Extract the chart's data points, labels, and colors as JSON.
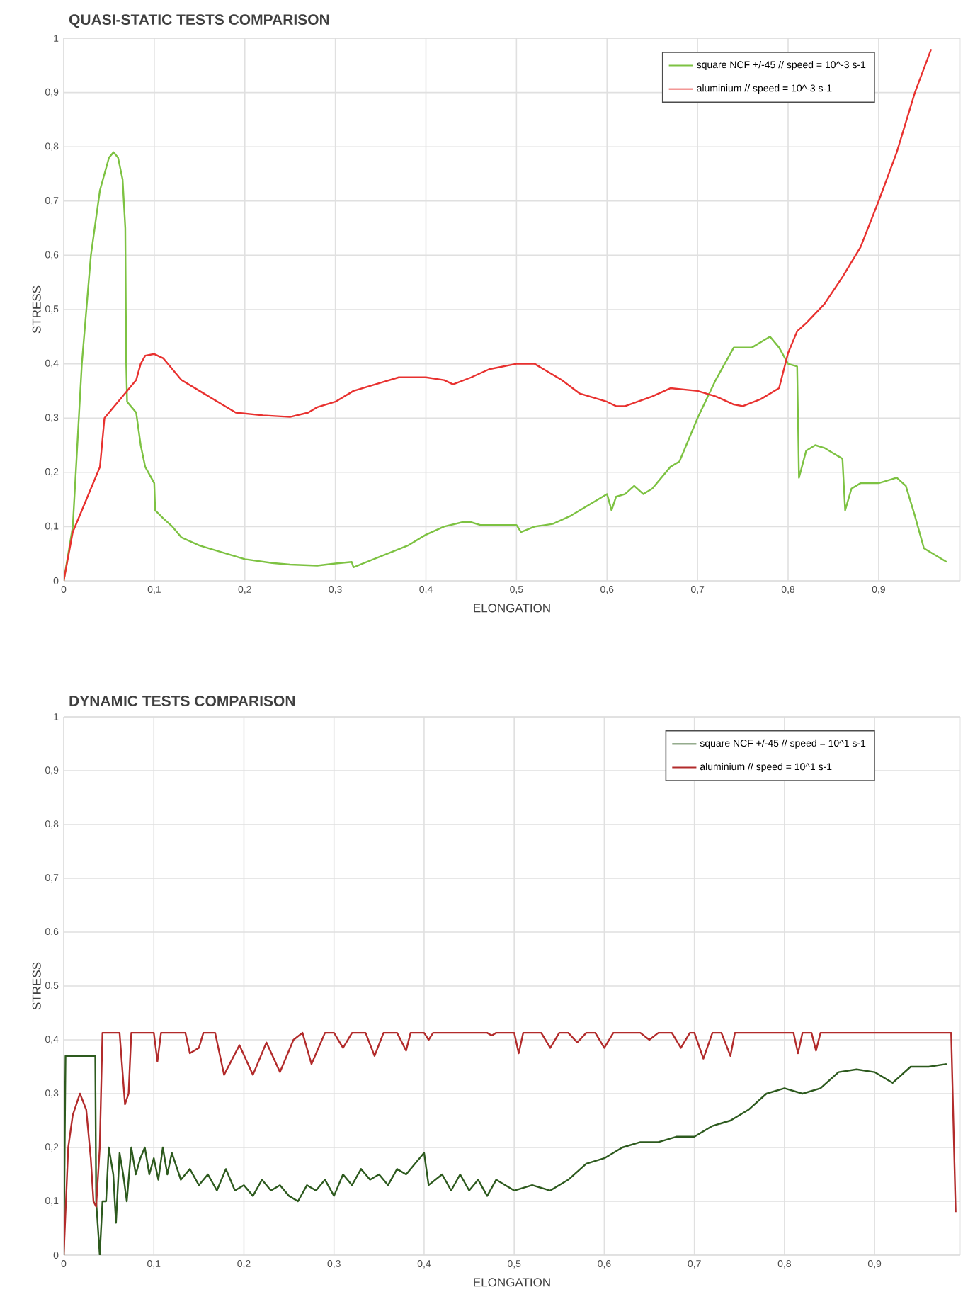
{
  "chart_data": [
    {
      "type": "line",
      "title": "QUASI-STATIC TESTS COMPARISON",
      "xlabel": "ELONGATION",
      "ylabel": "STRESS",
      "grid": true,
      "legend": "top right",
      "marker": "none",
      "line_style": "solid",
      "xlim": [
        0,
        0.99
      ],
      "ylim": [
        0,
        1
      ],
      "xticks": [
        0,
        {
          "value": 0.1,
          "label": "0,1"
        },
        {
          "value": 0.2,
          "label": "0,2"
        },
        {
          "value": 0.3,
          "label": "0,3"
        },
        {
          "value": 0.4,
          "label": "0,4"
        },
        {
          "value": 0.5,
          "label": "0,5"
        },
        {
          "value": 0.6,
          "label": "0,6"
        },
        {
          "value": 0.7,
          "label": "0,7"
        },
        {
          "value": 0.8,
          "label": "0,8"
        },
        {
          "value": 0.9,
          "label": "0,9"
        }
      ],
      "yticks": [
        0,
        {
          "value": 0.1,
          "label": "0,1"
        },
        {
          "value": 0.2,
          "label": "0,2"
        },
        {
          "value": 0.3,
          "label": "0,3"
        },
        {
          "value": 0.4,
          "label": "0,4"
        },
        {
          "value": 0.5,
          "label": "0,5"
        },
        {
          "value": 0.6,
          "label": "0,6"
        },
        {
          "value": 0.7,
          "label": "0,7"
        },
        {
          "value": 0.8,
          "label": "0,8"
        },
        {
          "value": 0.9,
          "label": "0,9"
        },
        1
      ],
      "series": [
        {
          "name": "square NCF +/-45 // speed = 10^-3 s-1",
          "color": "#7dc242",
          "x": [
            0,
            0.01,
            0.02,
            0.03,
            0.04,
            0.05,
            0.055,
            0.06,
            0.065,
            0.068,
            0.069,
            0.07,
            0.075,
            0.08,
            0.085,
            0.09,
            0.1,
            0.101,
            0.11,
            0.12,
            0.13,
            0.15,
            0.2,
            0.23,
            0.25,
            0.28,
            0.3,
            0.318,
            0.32,
            0.35,
            0.38,
            0.4,
            0.42,
            0.44,
            0.45,
            0.46,
            0.5,
            0.505,
            0.52,
            0.54,
            0.56,
            0.6,
            0.605,
            0.61,
            0.62,
            0.63,
            0.64,
            0.65,
            0.66,
            0.67,
            0.68,
            0.7,
            0.72,
            0.74,
            0.76,
            0.78,
            0.79,
            0.8,
            0.81,
            0.812,
            0.82,
            0.83,
            0.84,
            0.85,
            0.86,
            0.863,
            0.87,
            0.88,
            0.9,
            0.92,
            0.93,
            0.94,
            0.95,
            0.96,
            0.975
          ],
          "values": [
            0,
            0.1,
            0.4,
            0.6,
            0.72,
            0.78,
            0.79,
            0.78,
            0.74,
            0.65,
            0.4,
            0.33,
            0.32,
            0.31,
            0.25,
            0.21,
            0.18,
            0.13,
            0.115,
            0.1,
            0.08,
            0.065,
            0.04,
            0.033,
            0.03,
            0.028,
            0.032,
            0.035,
            0.025,
            0.045,
            0.065,
            0.085,
            0.1,
            0.108,
            0.108,
            0.103,
            0.103,
            0.09,
            0.1,
            0.105,
            0.12,
            0.16,
            0.13,
            0.155,
            0.16,
            0.175,
            0.16,
            0.17,
            0.19,
            0.21,
            0.22,
            0.3,
            0.37,
            0.43,
            0.43,
            0.45,
            0.43,
            0.4,
            0.395,
            0.19,
            0.24,
            0.25,
            0.245,
            0.235,
            0.225,
            0.13,
            0.17,
            0.18,
            0.18,
            0.19,
            0.175,
            0.12,
            0.06,
            0.05,
            0.035
          ]
        },
        {
          "name": "aluminium // speed = 10^-3 s-1",
          "color": "#e8312f",
          "x": [
            0,
            0.01,
            0.02,
            0.03,
            0.04,
            0.045,
            0.05,
            0.06,
            0.07,
            0.08,
            0.085,
            0.09,
            0.1,
            0.11,
            0.12,
            0.13,
            0.15,
            0.17,
            0.19,
            0.22,
            0.25,
            0.27,
            0.28,
            0.3,
            0.32,
            0.35,
            0.37,
            0.4,
            0.42,
            0.43,
            0.45,
            0.47,
            0.5,
            0.52,
            0.55,
            0.57,
            0.6,
            0.61,
            0.62,
            0.65,
            0.67,
            0.7,
            0.72,
            0.74,
            0.75,
            0.77,
            0.79,
            0.8,
            0.81,
            0.82,
            0.84,
            0.86,
            0.88,
            0.9,
            0.92,
            0.94,
            0.958
          ],
          "values": [
            0,
            0.09,
            0.13,
            0.17,
            0.21,
            0.3,
            0.31,
            0.33,
            0.35,
            0.37,
            0.4,
            0.415,
            0.418,
            0.41,
            0.39,
            0.37,
            0.35,
            0.33,
            0.31,
            0.305,
            0.302,
            0.31,
            0.32,
            0.33,
            0.35,
            0.365,
            0.375,
            0.375,
            0.37,
            0.362,
            0.375,
            0.39,
            0.4,
            0.4,
            0.37,
            0.345,
            0.33,
            0.322,
            0.322,
            0.34,
            0.355,
            0.35,
            0.34,
            0.325,
            0.322,
            0.335,
            0.355,
            0.42,
            0.46,
            0.475,
            0.51,
            0.56,
            0.615,
            0.7,
            0.79,
            0.9,
            0.98
          ]
        }
      ]
    },
    {
      "type": "line",
      "title": "DYNAMIC TESTS COMPARISON",
      "xlabel": "ELONGATION",
      "ylabel": "STRESS",
      "grid": true,
      "legend": "top right",
      "marker": "none",
      "line_style": "solid",
      "xlim": [
        0,
        0.995
      ],
      "ylim": [
        0,
        1
      ],
      "xticks": [
        0,
        {
          "value": 0.1,
          "label": "0,1"
        },
        {
          "value": 0.2,
          "label": "0,2"
        },
        {
          "value": 0.3,
          "label": "0,3"
        },
        {
          "value": 0.4,
          "label": "0,4"
        },
        {
          "value": 0.5,
          "label": "0,5"
        },
        {
          "value": 0.6,
          "label": "0,6"
        },
        {
          "value": 0.7,
          "label": "0,7"
        },
        {
          "value": 0.8,
          "label": "0,8"
        },
        {
          "value": 0.9,
          "label": "0,9"
        }
      ],
      "yticks": [
        0,
        {
          "value": 0.1,
          "label": "0,1"
        },
        {
          "value": 0.2,
          "label": "0,2"
        },
        {
          "value": 0.3,
          "label": "0,3"
        },
        {
          "value": 0.4,
          "label": "0,4"
        },
        {
          "value": 0.5,
          "label": "0,5"
        },
        {
          "value": 0.6,
          "label": "0,6"
        },
        {
          "value": 0.7,
          "label": "0,7"
        },
        {
          "value": 0.8,
          "label": "0,8"
        },
        {
          "value": 0.9,
          "label": "0,9"
        },
        1
      ],
      "series": [
        {
          "name": "square NCF +/-45 // speed = 10^1 s-1",
          "color": "#2d5a1e",
          "x": [
            0,
            0.002,
            0.035,
            0.036,
            0.04,
            0.043,
            0.047,
            0.05,
            0.055,
            0.058,
            0.062,
            0.066,
            0.07,
            0.075,
            0.08,
            0.085,
            0.09,
            0.095,
            0.1,
            0.105,
            0.11,
            0.115,
            0.12,
            0.13,
            0.14,
            0.15,
            0.16,
            0.17,
            0.18,
            0.19,
            0.2,
            0.21,
            0.22,
            0.23,
            0.24,
            0.25,
            0.26,
            0.27,
            0.28,
            0.29,
            0.3,
            0.31,
            0.32,
            0.33,
            0.34,
            0.35,
            0.36,
            0.37,
            0.38,
            0.39,
            0.4,
            0.405,
            0.42,
            0.43,
            0.44,
            0.45,
            0.46,
            0.47,
            0.48,
            0.5,
            0.52,
            0.54,
            0.56,
            0.58,
            0.6,
            0.62,
            0.64,
            0.66,
            0.68,
            0.7,
            0.72,
            0.74,
            0.76,
            0.78,
            0.8,
            0.82,
            0.84,
            0.86,
            0.88,
            0.9,
            0.92,
            0.94,
            0.96,
            0.98
          ],
          "values": [
            0,
            0.37,
            0.37,
            0.1,
            0.0,
            0.1,
            0.1,
            0.2,
            0.15,
            0.06,
            0.19,
            0.15,
            0.1,
            0.2,
            0.15,
            0.18,
            0.2,
            0.15,
            0.18,
            0.14,
            0.2,
            0.15,
            0.19,
            0.14,
            0.16,
            0.13,
            0.15,
            0.12,
            0.16,
            0.12,
            0.13,
            0.11,
            0.14,
            0.12,
            0.13,
            0.11,
            0.1,
            0.13,
            0.12,
            0.14,
            0.11,
            0.15,
            0.13,
            0.16,
            0.14,
            0.15,
            0.13,
            0.16,
            0.15,
            0.17,
            0.19,
            0.13,
            0.15,
            0.12,
            0.15,
            0.12,
            0.14,
            0.11,
            0.14,
            0.12,
            0.13,
            0.12,
            0.14,
            0.17,
            0.18,
            0.2,
            0.21,
            0.21,
            0.22,
            0.22,
            0.24,
            0.25,
            0.27,
            0.3,
            0.31,
            0.3,
            0.31,
            0.34,
            0.345,
            0.34,
            0.32,
            0.35,
            0.35,
            0.355
          ]
        },
        {
          "name": "aluminium // speed = 10^1 s-1",
          "color": "#b22b2b",
          "x": [
            0,
            0.005,
            0.01,
            0.018,
            0.025,
            0.03,
            0.033,
            0.036,
            0.04,
            0.043,
            0.062,
            0.068,
            0.072,
            0.075,
            0.1,
            0.104,
            0.108,
            0.135,
            0.14,
            0.15,
            0.155,
            0.168,
            0.178,
            0.195,
            0.21,
            0.225,
            0.24,
            0.255,
            0.265,
            0.275,
            0.29,
            0.3,
            0.31,
            0.32,
            0.335,
            0.345,
            0.355,
            0.37,
            0.38,
            0.385,
            0.4,
            0.405,
            0.41,
            0.47,
            0.475,
            0.48,
            0.5,
            0.505,
            0.51,
            0.53,
            0.54,
            0.55,
            0.56,
            0.57,
            0.58,
            0.59,
            0.6,
            0.61,
            0.64,
            0.65,
            0.66,
            0.675,
            0.685,
            0.695,
            0.7,
            0.71,
            0.72,
            0.73,
            0.74,
            0.745,
            0.81,
            0.815,
            0.82,
            0.83,
            0.835,
            0.84,
            0.985,
            0.99
          ],
          "values": [
            0,
            0.2,
            0.26,
            0.3,
            0.27,
            0.18,
            0.1,
            0.09,
            0.2,
            0.413,
            0.413,
            0.28,
            0.3,
            0.413,
            0.413,
            0.36,
            0.413,
            0.413,
            0.375,
            0.385,
            0.413,
            0.413,
            0.335,
            0.39,
            0.335,
            0.395,
            0.34,
            0.4,
            0.413,
            0.355,
            0.413,
            0.413,
            0.385,
            0.413,
            0.413,
            0.37,
            0.413,
            0.413,
            0.38,
            0.413,
            0.413,
            0.4,
            0.413,
            0.413,
            0.408,
            0.413,
            0.413,
            0.375,
            0.413,
            0.413,
            0.385,
            0.413,
            0.413,
            0.395,
            0.413,
            0.413,
            0.385,
            0.413,
            0.413,
            0.4,
            0.413,
            0.413,
            0.385,
            0.413,
            0.413,
            0.365,
            0.413,
            0.413,
            0.37,
            0.413,
            0.413,
            0.375,
            0.413,
            0.413,
            0.38,
            0.413,
            0.413,
            0.08
          ]
        }
      ]
    }
  ]
}
